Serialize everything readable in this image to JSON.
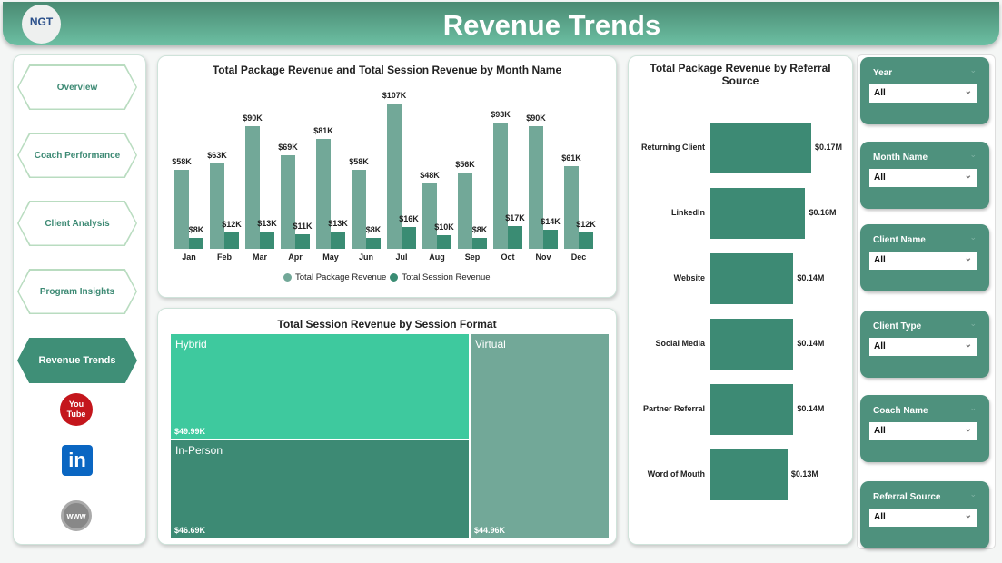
{
  "header": {
    "title": "Revenue Trends",
    "logo_text": "NGT"
  },
  "nav": [
    {
      "label": "Overview"
    },
    {
      "label": "Coach Performance"
    },
    {
      "label": "Client Analysis"
    },
    {
      "label": "Program Insights"
    },
    {
      "label": "Revenue Trends",
      "active": true
    }
  ],
  "social": [
    {
      "icon": "youtube-icon",
      "label": "You Tube"
    },
    {
      "icon": "linkedin-icon",
      "label": "in"
    },
    {
      "icon": "globe-icon",
      "label": "www"
    }
  ],
  "colors": {
    "accent": "#4e917d",
    "package": "#72a898",
    "session": "#3a8c73",
    "hybrid": "#3ec99e",
    "inperson": "#3d8a74",
    "virtual": "#72a898"
  },
  "chart_data": [
    {
      "type": "bar",
      "title": "Total Package Revenue and Total Session Revenue by Month Name",
      "categories": [
        "Jan",
        "Feb",
        "Mar",
        "Apr",
        "May",
        "Jun",
        "Jul",
        "Aug",
        "Sep",
        "Oct",
        "Nov",
        "Dec"
      ],
      "series": [
        {
          "name": "Total Package Revenue",
          "values": [
            58,
            63,
            90,
            69,
            81,
            58,
            107,
            48,
            56,
            93,
            90,
            61
          ],
          "labels": [
            "$58K",
            "$63K",
            "$90K",
            "$69K",
            "$81K",
            "$58K",
            "$107K",
            "$48K",
            "$56K",
            "$93K",
            "$90K",
            "$61K"
          ]
        },
        {
          "name": "Total Session Revenue",
          "values": [
            8,
            12,
            13,
            11,
            13,
            8,
            16,
            10,
            8,
            17,
            14,
            12
          ],
          "labels": [
            "$8K",
            "$12K",
            "$13K",
            "$11K",
            "$13K",
            "$8K",
            "$16K",
            "$10K",
            "$8K",
            "$17K",
            "$14K",
            "$12K"
          ]
        }
      ],
      "unit": "K",
      "legend": "bottom"
    },
    {
      "type": "bar",
      "orientation": "horizontal",
      "title": "Total Package Revenue by Referral Source",
      "categories": [
        "Returning Client",
        "LinkedIn",
        "Website",
        "Social Media",
        "Partner Referral",
        "Word of Mouth"
      ],
      "values": [
        0.17,
        0.16,
        0.14,
        0.14,
        0.14,
        0.13
      ],
      "labels": [
        "$0.17M",
        "$0.16M",
        "$0.14M",
        "$0.14M",
        "$0.14M",
        "$0.13M"
      ]
    },
    {
      "type": "treemap",
      "title": "Total Session Revenue by Session Format",
      "items": [
        {
          "name": "Hybrid",
          "value": "$49.99K"
        },
        {
          "name": "In-Person",
          "value": "$46.69K"
        },
        {
          "name": "Virtual",
          "value": "$44.96K"
        }
      ]
    }
  ],
  "slicers": [
    {
      "title": "Year",
      "value": "All"
    },
    {
      "title": "Month Name",
      "value": "All"
    },
    {
      "title": "Client Name",
      "value": "All"
    },
    {
      "title": "Client Type",
      "value": "All"
    },
    {
      "title": "Coach Name",
      "value": "All"
    },
    {
      "title": "Referral Source",
      "value": "All"
    }
  ]
}
